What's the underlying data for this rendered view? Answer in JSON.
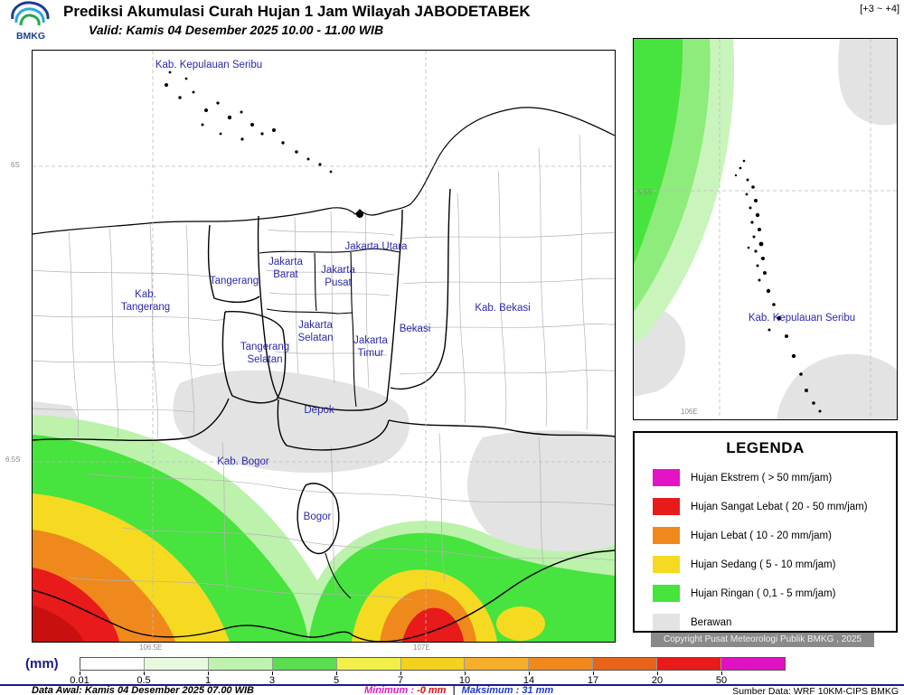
{
  "header": {
    "logo_text": "BMKG",
    "title": "Prediksi Akumulasi Curah Hujan 1 Jam Wilayah JABODETABEK",
    "valid_line": "Valid: Kamis 04 Desember 2025 10.00 - 11.00 WIB",
    "lead_badge": "[+3 ~ +4]"
  },
  "main_map": {
    "labels": {
      "kep_seribu": "Kab. Kepulauan Seribu",
      "jakarta_utara": "Jakarta Utara",
      "jakarta_barat": [
        "Jakarta",
        "Barat"
      ],
      "jakarta_pusat": [
        "Jakarta",
        "Pusat"
      ],
      "tangerang": "Tangerang",
      "kab_tangerang": [
        "Kab.",
        "Tangerang"
      ],
      "kab_bekasi": "Kab. Bekasi",
      "bekasi": "Bekasi",
      "jakarta_selatan": [
        "Jakarta",
        "Selatan"
      ],
      "jakarta_timur": [
        "Jakarta",
        "Timur"
      ],
      "tangerang_selatan": [
        "Tangerang",
        "Selatan"
      ],
      "depok": "Depok",
      "kab_bogor": "Kab. Bogor",
      "bogor": "Bogor"
    },
    "axis": {
      "lat_6s": "6S",
      "lat_65s": "6.5S",
      "lon_1065e": "106.5E",
      "lon_107e": "107E"
    }
  },
  "inset_map": {
    "label": "Kab. Kepulauan Seribu",
    "axis": {
      "lat": "5.5S",
      "lon": "106E"
    }
  },
  "map_colors": {
    "rain_pale": "#BCF2AC",
    "rain_light": "#47E33E",
    "rain_mid_pale": "#8DEC7B",
    "rain_inset_pale": "#C9F5BC",
    "rain_moderate": "#F5DA21",
    "rain_heavy": "#F0891C",
    "rain_very_heavy": "#E81A1A",
    "rain_intense": "#C81010",
    "cloud": "#E3E3E3"
  },
  "legend": {
    "title": "LEGENDA",
    "items": [
      {
        "color": "#E612C6",
        "label": "Hujan Ekstrem ( > 50 mm/jam)"
      },
      {
        "color": "#E81A1A",
        "label": "Hujan Sangat Lebat ( 20 - 50 mm/jam)"
      },
      {
        "color": "#F0891C",
        "label": "Hujan Lebat ( 10 - 20 mm/jam)"
      },
      {
        "color": "#F5DA21",
        "label": "Hujan Sedang ( 5 - 10 mm/jam)"
      },
      {
        "color": "#47E33E",
        "label": "Hujan Ringan ( 0,1 - 5 mm/jam)"
      },
      {
        "color": "#E3E3E3",
        "label": "Berawan"
      }
    ]
  },
  "copyright": "Copyright Pusat Meteorologi Publik BMKG , 2025",
  "colorbar": {
    "unit": "(mm)",
    "ticks": [
      "0.01",
      "0.5",
      "1",
      "3",
      "5",
      "7",
      "10",
      "14",
      "17",
      "20",
      "50"
    ],
    "colors": [
      "#FFFFFF",
      "#E7F9DF",
      "#C0F2AF",
      "#5ADD50",
      "#F2EF4C",
      "#F2D21E",
      "#F6AE2C",
      "#F0891C",
      "#E8641A",
      "#E81A1A",
      "#DE12C0"
    ]
  },
  "footer": {
    "data_awal": "Data Awal: Kamis 04 Desember 2025 07.00 WIB",
    "min_label": "Minimum :",
    "min_value": "-0 mm",
    "separator": "|",
    "max_label": "Maksimum :",
    "max_value": "31 mm",
    "sumber": "Sumber Data: WRF 10KM-CIPS BMKG"
  }
}
